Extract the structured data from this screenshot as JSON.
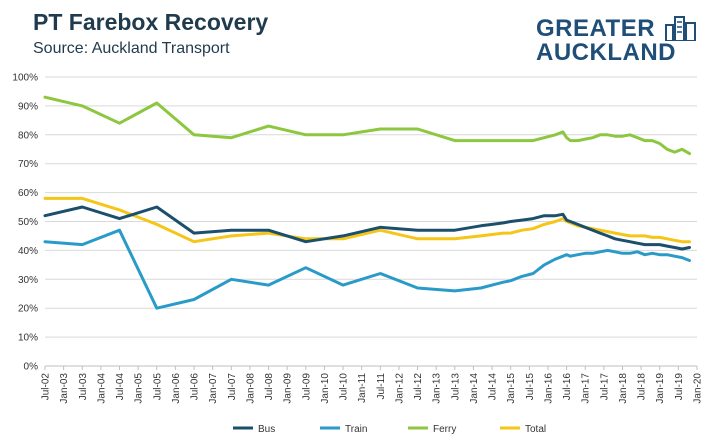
{
  "header": {
    "title": "PT Farebox Recovery",
    "subtitle": "Source: Auckland Transport",
    "logo_line1": "GREATER",
    "logo_line2": "AUCKLAND"
  },
  "colors": {
    "Bus": "#1b4f6b",
    "Train": "#2a9bc9",
    "Ferry": "#8dc63f",
    "Total": "#f5c518",
    "grid": "#d9d9d9",
    "logo": "#1f4e79"
  },
  "chart_data": {
    "type": "line",
    "title": "PT Farebox Recovery",
    "subtitle": "Source: Auckland Transport",
    "xlabel": "",
    "ylabel": "",
    "ylim": [
      0,
      100
    ],
    "y_ticks": [
      "0%",
      "10%",
      "20%",
      "30%",
      "40%",
      "50%",
      "60%",
      "70%",
      "80%",
      "90%",
      "100%"
    ],
    "x_ticks": [
      "Jul-02",
      "Jan-03",
      "Jul-03",
      "Jan-04",
      "Jul-04",
      "Jan-05",
      "Jul-05",
      "Jan-06",
      "Jul-06",
      "Jan-07",
      "Jul-07",
      "Jan-08",
      "Jul-08",
      "Jan-09",
      "Jul-09",
      "Jan-10",
      "Jul-10",
      "Jan-11",
      "Jul-11",
      "Jan-12",
      "Jul-12",
      "Jan-13",
      "Jul-13",
      "Jan-14",
      "Jul-14",
      "Jan-15",
      "Jul-15",
      "Jan-16",
      "Jul-16",
      "Jan-17",
      "Jul-17",
      "Jan-18",
      "Jul-18",
      "Jan-19",
      "Jul-19",
      "Jan-20"
    ],
    "grid": true,
    "legend_position": "bottom",
    "series": [
      {
        "name": "Bus",
        "x": [
          2002.5,
          2003.5,
          2004.5,
          2005.5,
          2006.5,
          2007.5,
          2008.5,
          2009.5,
          2010.5,
          2011.5,
          2012.5,
          2013.5,
          2014.2,
          2014.5,
          2014.8,
          2015.0,
          2015.3,
          2015.6,
          2015.9,
          2016.2,
          2016.4,
          2016.5,
          2016.6,
          2016.8,
          2017.0,
          2017.2,
          2017.4,
          2017.6,
          2017.8,
          2018.0,
          2018.2,
          2018.4,
          2018.6,
          2018.8,
          2019.0,
          2019.2,
          2019.4,
          2019.6,
          2019.8
        ],
        "y": [
          52,
          55,
          51,
          55,
          46,
          47,
          47,
          43,
          45,
          48,
          47,
          47,
          48.5,
          49,
          49.5,
          50,
          50.5,
          51,
          52,
          52,
          52.5,
          50.5,
          50,
          49,
          48,
          47,
          46,
          45,
          44,
          43.5,
          43,
          42.5,
          42,
          42,
          42,
          41.5,
          41,
          40.5,
          41
        ]
      },
      {
        "name": "Train",
        "x": [
          2002.5,
          2003.5,
          2004.5,
          2005.5,
          2006.5,
          2007.5,
          2008.5,
          2009.5,
          2010.5,
          2011.5,
          2012.5,
          2013.5,
          2014.2,
          2014.5,
          2014.8,
          2015.0,
          2015.3,
          2015.6,
          2015.9,
          2016.2,
          2016.4,
          2016.5,
          2016.6,
          2016.8,
          2017.0,
          2017.2,
          2017.4,
          2017.6,
          2017.8,
          2018.0,
          2018.2,
          2018.4,
          2018.6,
          2018.8,
          2019.0,
          2019.2,
          2019.4,
          2019.6,
          2019.8
        ],
        "y": [
          43,
          42,
          47,
          20,
          23,
          30,
          28,
          34,
          28,
          32,
          27,
          26,
          27,
          28,
          29,
          29.5,
          31,
          32,
          35,
          37,
          38,
          38.5,
          38,
          38.5,
          39,
          39,
          39.5,
          40,
          39.5,
          39,
          39,
          39.5,
          38.5,
          39,
          38.5,
          38.5,
          38,
          37.5,
          36.5
        ]
      },
      {
        "name": "Ferry",
        "x": [
          2002.5,
          2003.5,
          2004.5,
          2005.5,
          2006.5,
          2007.5,
          2008.5,
          2009.5,
          2010.5,
          2011.5,
          2012.5,
          2013.5,
          2014.2,
          2014.5,
          2014.8,
          2015.0,
          2015.3,
          2015.6,
          2015.9,
          2016.2,
          2016.4,
          2016.5,
          2016.6,
          2016.8,
          2017.0,
          2017.2,
          2017.4,
          2017.6,
          2017.8,
          2018.0,
          2018.2,
          2018.4,
          2018.6,
          2018.8,
          2019.0,
          2019.2,
          2019.4,
          2019.6,
          2019.8
        ],
        "y": [
          93,
          90,
          84,
          91,
          80,
          79,
          83,
          80,
          80,
          82,
          82,
          78,
          78,
          78,
          78,
          78,
          78,
          78,
          79,
          80,
          81,
          79,
          78,
          78,
          78.5,
          79,
          80,
          80,
          79.5,
          79.5,
          80,
          79,
          78,
          78,
          77,
          75,
          74,
          75,
          73.5
        ]
      },
      {
        "name": "Total",
        "x": [
          2002.5,
          2003.5,
          2004.5,
          2005.5,
          2006.5,
          2007.5,
          2008.5,
          2009.5,
          2010.5,
          2011.5,
          2012.5,
          2013.5,
          2014.2,
          2014.5,
          2014.8,
          2015.0,
          2015.3,
          2015.6,
          2015.9,
          2016.2,
          2016.4,
          2016.5,
          2016.6,
          2016.8,
          2017.0,
          2017.2,
          2017.4,
          2017.6,
          2017.8,
          2018.0,
          2018.2,
          2018.4,
          2018.6,
          2018.8,
          2019.0,
          2019.2,
          2019.4,
          2019.6,
          2019.8
        ],
        "y": [
          58,
          58,
          54,
          49,
          43,
          45,
          46,
          44,
          44,
          47,
          44,
          44,
          45,
          45.5,
          46,
          46,
          47,
          47.5,
          49,
          50,
          51,
          50,
          49.5,
          48.5,
          48,
          47.5,
          47,
          46.5,
          46,
          45.5,
          45,
          45,
          45,
          44.5,
          44.5,
          44,
          43.5,
          43,
          43
        ]
      }
    ]
  }
}
